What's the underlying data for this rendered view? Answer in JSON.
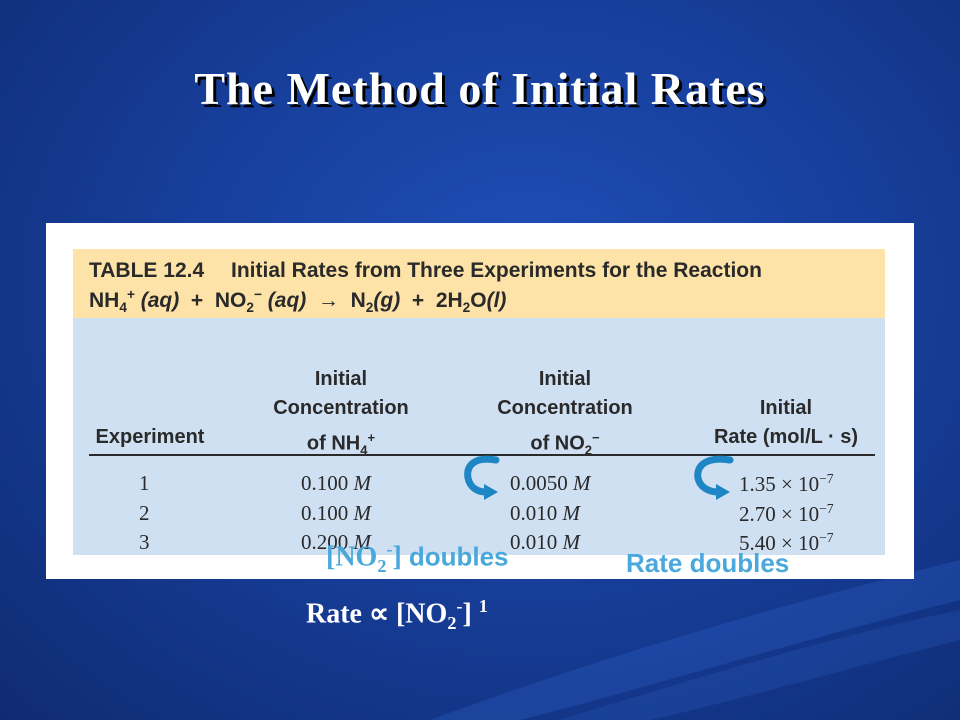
{
  "slide": {
    "title": "The Method of Initial Rates"
  },
  "table": {
    "number": "TABLE 12.4",
    "title": "Initial Rates from Three Experiments for the Reaction",
    "reaction": {
      "nh4": "NH",
      "nh4_sub": "4",
      "nh4_sup": "+",
      "aq1": "(aq)",
      "plus1": "+",
      "no2": "NO",
      "no2_sub": "2",
      "no2_sup": "−",
      "aq2": "(aq)",
      "arrow": "→",
      "n2": "N",
      "n2_sub": "2",
      "g": "(g)",
      "plus2": "+",
      "h2o": "2H",
      "h2o_sub": "2",
      "h2o_o": "O",
      "l": "(l)"
    },
    "headers": {
      "experiment": "Experiment",
      "nh4_line1": "Initial",
      "nh4_line2": "Concentration",
      "nh4_line3": "of NH",
      "nh4_sub": "4",
      "nh4_sup": "+",
      "no2_line1": "Initial",
      "no2_line2": "Concentration",
      "no2_line3": "of NO",
      "no2_sub": "2",
      "no2_sup": "−",
      "rate_line1": "Initial",
      "rate_line2": "Rate (mol/L · s)"
    },
    "rows": [
      {
        "exp": "1",
        "nh4": "0.100",
        "nh4_unit": "M",
        "no2": "0.0050",
        "no2_unit": "M",
        "rate": "1.35 × 10",
        "rate_exp": "−7"
      },
      {
        "exp": "2",
        "nh4": "0.100",
        "nh4_unit": "M",
        "no2": "0.010",
        "no2_unit": "M",
        "rate": "2.70 × 10",
        "rate_exp": "−7"
      },
      {
        "exp": "3",
        "nh4": "0.200",
        "nh4_unit": "M",
        "no2": "0.010",
        "no2_unit": "M",
        "rate": "5.40 × 10",
        "rate_exp": "−7"
      }
    ]
  },
  "annotations": {
    "no2_doubles_open": "[NO",
    "no2_doubles_sub": "2",
    "no2_doubles_sup": "-",
    "no2_doubles_close": "]",
    "no2_doubles_word": "doubles",
    "rate_doubles": "Rate doubles",
    "rate_law_prefix": "Rate ∝ [NO",
    "rate_law_sub": "2",
    "rate_law_sup": "-",
    "rate_law_close": "]",
    "rate_law_power": "1"
  },
  "colors": {
    "background": "#173f9c",
    "caption_fill": "#fde3a8",
    "table_fill": "#cfe0f2",
    "annotation": "#4aa8dc",
    "arrow": "#1e86c4"
  },
  "icons": [
    "curved-arrow-icon",
    "curved-arrow-icon"
  ]
}
